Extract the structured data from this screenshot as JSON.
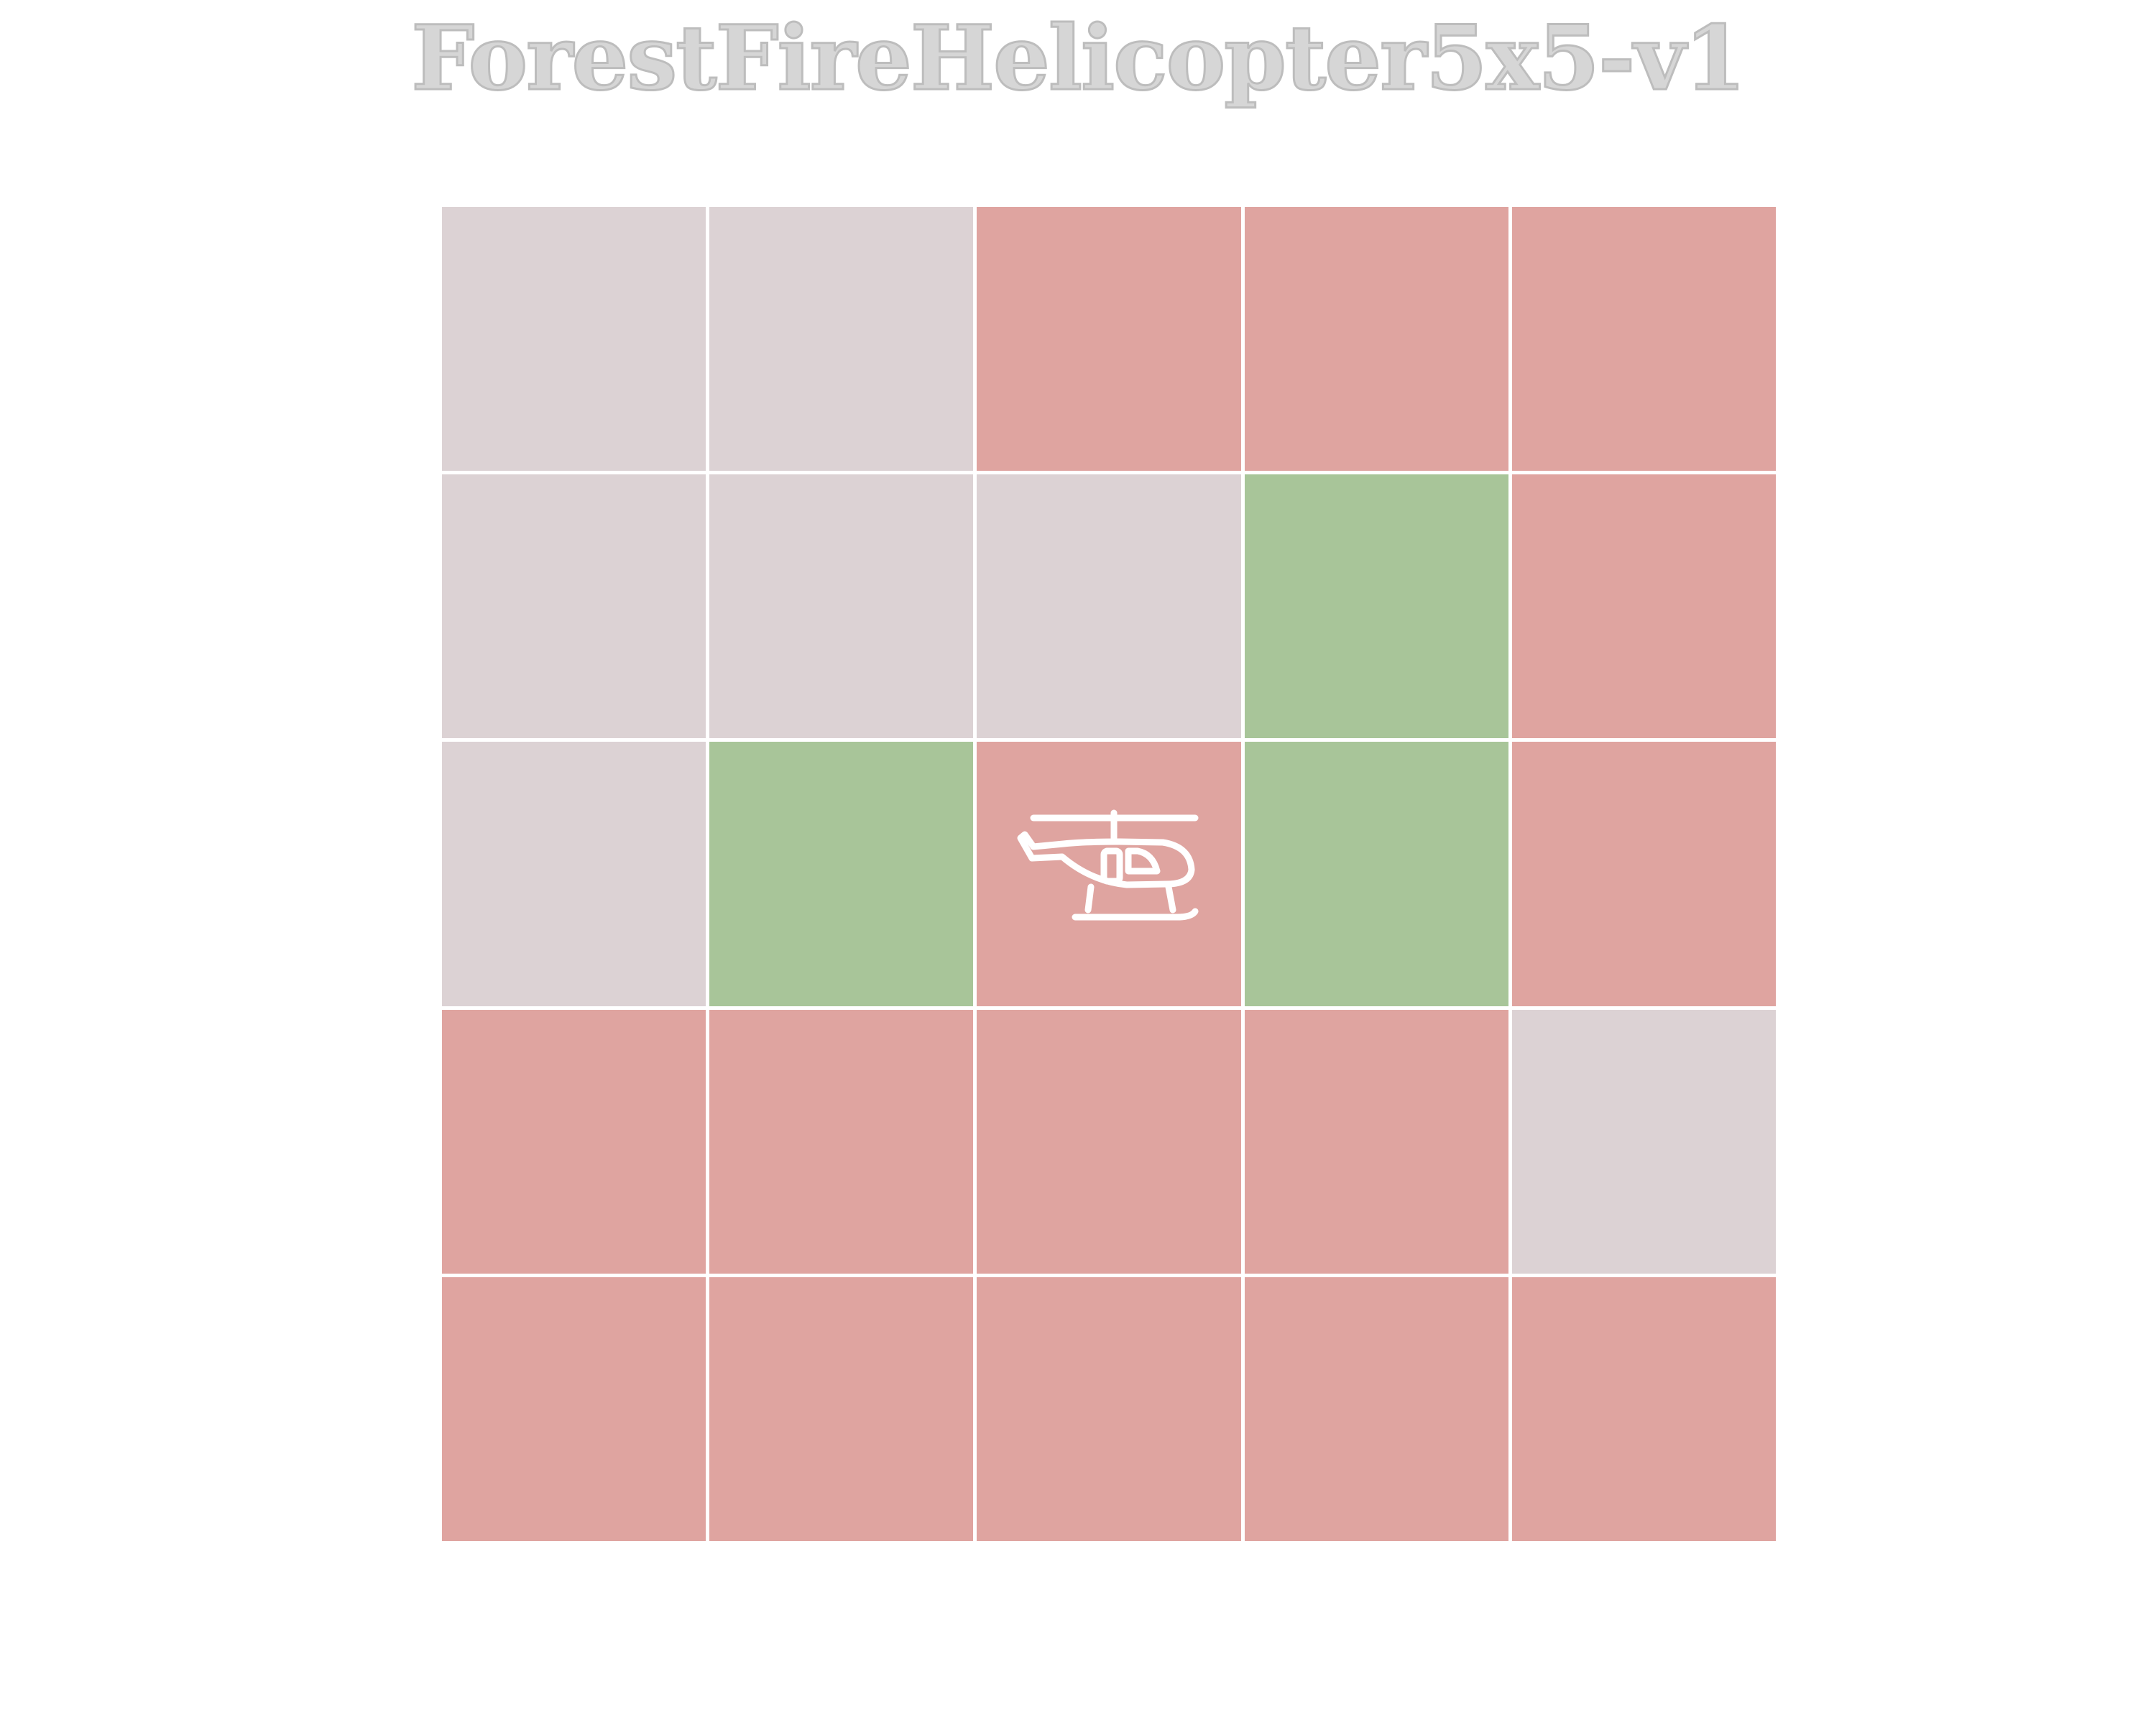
{
  "title": "ForestFireHelicopter5x5-v1",
  "colors": {
    "empty": "#dcd2d4",
    "fire": "#dfa4a0",
    "tree": "#a8c599",
    "gridline": "#ffffff",
    "helicopter": "#ffffff"
  },
  "grid": {
    "rows": 5,
    "cols": 5,
    "cells": [
      [
        "empty",
        "empty",
        "fire",
        "fire",
        "fire"
      ],
      [
        "empty",
        "empty",
        "empty",
        "tree",
        "fire"
      ],
      [
        "empty",
        "tree",
        "fire",
        "tree",
        "fire"
      ],
      [
        "fire",
        "fire",
        "fire",
        "fire",
        "empty"
      ],
      [
        "fire",
        "fire",
        "fire",
        "fire",
        "fire"
      ]
    ]
  },
  "helicopter": {
    "row": 2,
    "col": 2,
    "icon": "helicopter-icon"
  }
}
